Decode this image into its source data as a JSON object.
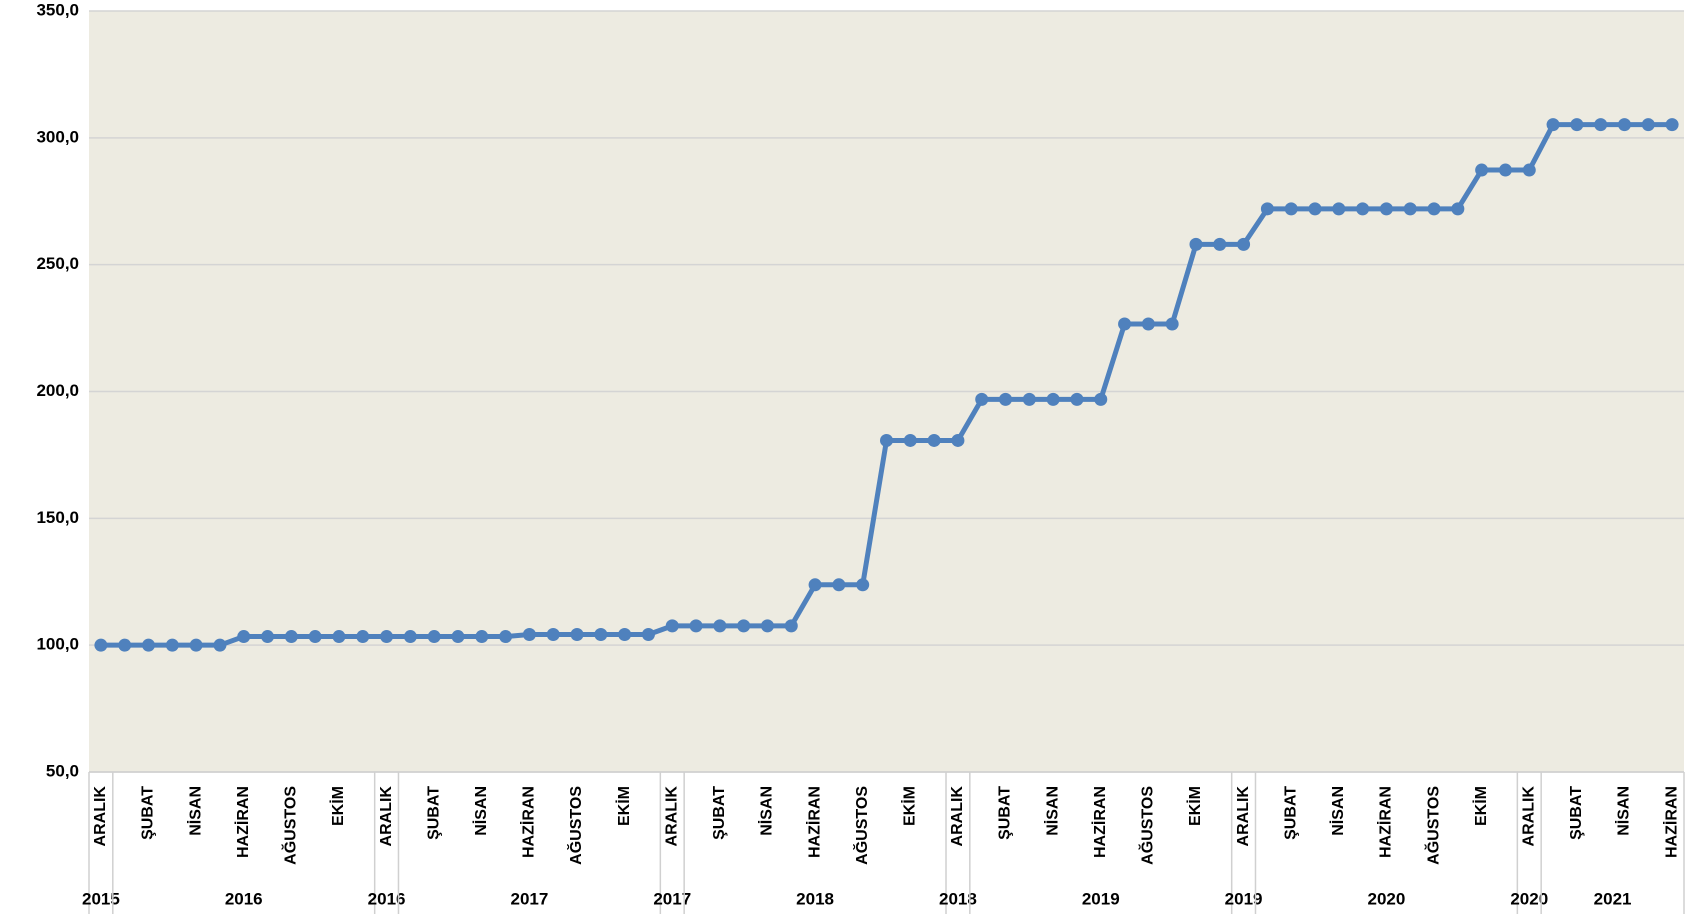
{
  "chart_data": {
    "type": "line",
    "categories": [
      "ARALIK",
      null,
      "ŞUBAT",
      null,
      "NİSAN",
      null,
      "HAZİRAN",
      null,
      "AĞUSTOS",
      null,
      "EKİM",
      null,
      "ARALIK",
      null,
      "ŞUBAT",
      null,
      "NİSAN",
      null,
      "HAZİRAN",
      null,
      "AĞUSTOS",
      null,
      "EKİM",
      null,
      "ARALIK",
      null,
      "ŞUBAT",
      null,
      "NİSAN",
      null,
      "HAZİRAN",
      null,
      "AĞUSTOS",
      null,
      "EKİM",
      null,
      "ARALIK",
      null,
      "ŞUBAT",
      null,
      "NİSAN",
      null,
      "HAZİRAN",
      null,
      "AĞUSTOS",
      null,
      "EKİM",
      null,
      "ARALIK",
      null,
      "ŞUBAT",
      null,
      "NİSAN",
      null,
      "HAZİRAN",
      null,
      "AĞUSTOS",
      null,
      "EKİM",
      null,
      "ARALIK",
      null,
      "ŞUBAT",
      null,
      "NİSAN",
      null,
      "HAZİRAN"
    ],
    "year_groups": [
      {
        "label": "2015",
        "count": 1
      },
      {
        "label": "2016",
        "count": 11
      },
      {
        "label": "2016",
        "count": 1
      },
      {
        "label": "2017",
        "count": 11
      },
      {
        "label": "2017",
        "count": 1
      },
      {
        "label": "2018",
        "count": 11
      },
      {
        "label": "2018",
        "count": 1
      },
      {
        "label": "2019",
        "count": 11
      },
      {
        "label": "2019",
        "count": 1
      },
      {
        "label": "2020",
        "count": 11
      },
      {
        "label": "2020",
        "count": 1
      },
      {
        "label": "2021",
        "count": 6
      }
    ],
    "series": [
      {
        "color": "#4f81bd",
        "values": [
          100.0,
          100.0,
          100.0,
          100.0,
          100.0,
          100.0,
          103.4,
          103.4,
          103.4,
          103.4,
          103.4,
          103.4,
          103.4,
          103.4,
          103.4,
          103.4,
          103.4,
          103.4,
          104.2,
          104.2,
          104.2,
          104.2,
          104.2,
          104.2,
          107.6,
          107.6,
          107.6,
          107.6,
          107.6,
          107.6,
          123.8,
          123.8,
          123.8,
          180.7,
          180.7,
          180.7,
          180.7,
          196.9,
          196.9,
          196.9,
          196.9,
          196.9,
          196.9,
          226.6,
          226.6,
          226.6,
          258.0,
          258.0,
          258.0,
          272.0,
          272.0,
          272.0,
          272.0,
          272.0,
          272.0,
          272.0,
          272.0,
          272.0,
          287.3,
          287.3,
          287.3,
          305.2,
          305.2,
          305.2,
          305.2,
          305.2,
          305.2
        ]
      }
    ],
    "ylim": [
      50,
      350
    ],
    "yticks": [
      {
        "value": 50,
        "label": "50,0"
      },
      {
        "value": 100,
        "label": "100,0"
      },
      {
        "value": 150,
        "label": "150,0"
      },
      {
        "value": 200,
        "label": "200,0"
      },
      {
        "value": 250,
        "label": "250,0"
      },
      {
        "value": 300,
        "label": "300,0"
      },
      {
        "value": 350,
        "label": "350,0"
      }
    ],
    "grid": true,
    "plot_background": "#edebe1"
  }
}
